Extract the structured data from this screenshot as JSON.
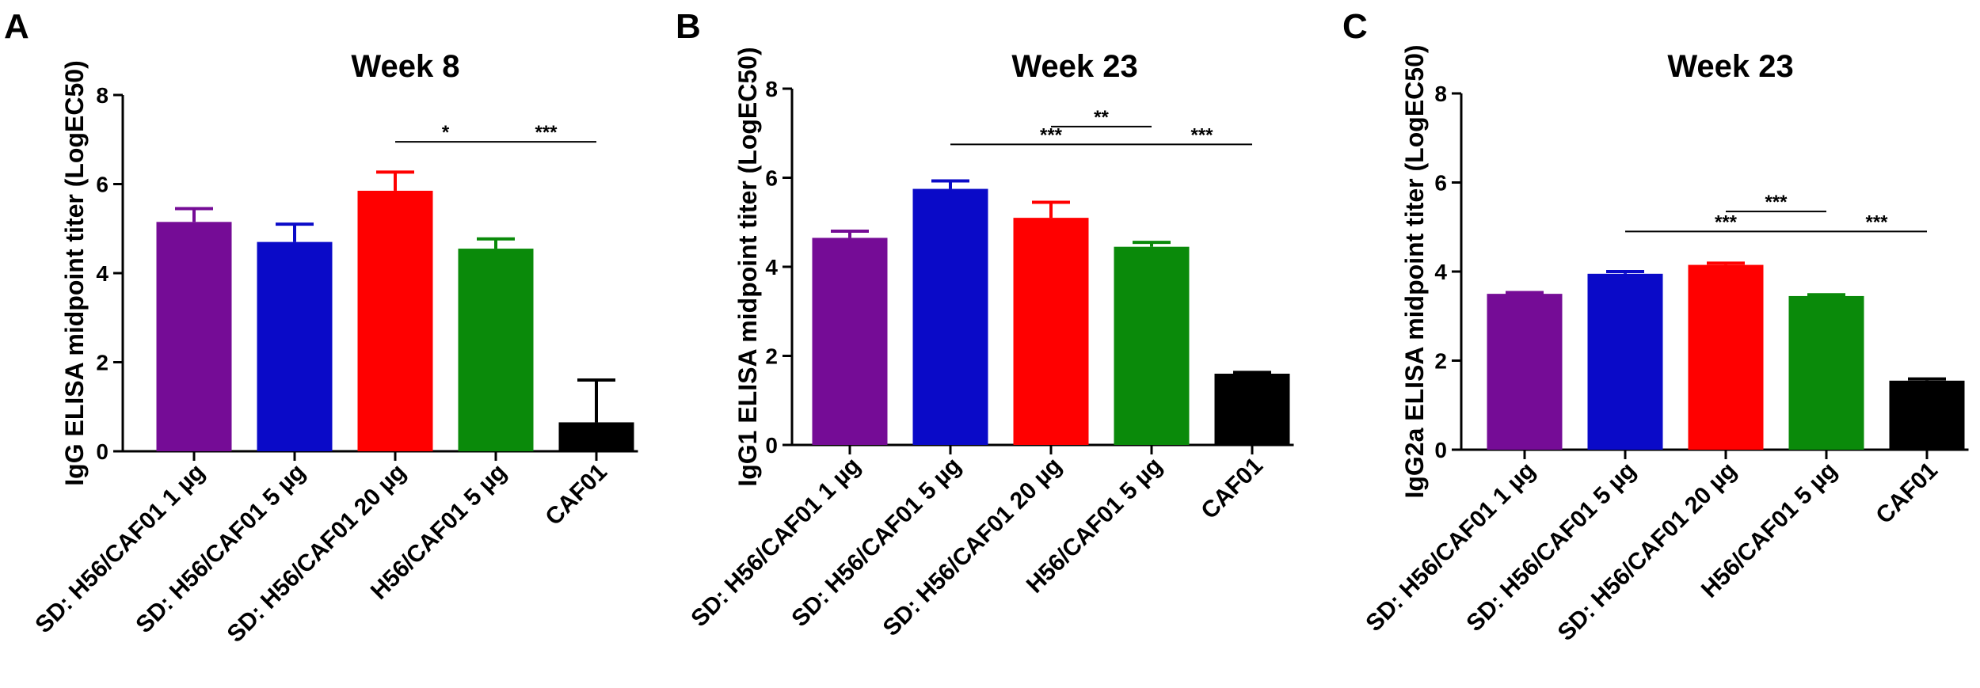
{
  "chart_data": [
    {
      "type": "bar",
      "panel": "A",
      "title": "Week 8",
      "ylabel": "IgG ELISA midpoint titer (LogEC50)",
      "ylim": [
        0,
        8
      ],
      "yticks": [
        0,
        2,
        4,
        6,
        8
      ],
      "categories": [
        "SD: H56/CAF01 1 µg",
        "SD: H56/CAF01 5 µg",
        "SD: H56/CAF01 20 µg",
        "H56/CAF01 5 µg",
        "CAF01"
      ],
      "values": [
        5.15,
        4.7,
        5.85,
        4.55,
        0.65
      ],
      "errors": [
        0.3,
        0.4,
        0.42,
        0.22,
        0.95
      ],
      "colors": [
        "#750c96",
        "#0a0ac8",
        "#ff0000",
        "#0a8a0a",
        "#000000"
      ],
      "significance": [
        {
          "from": 2,
          "to": 3,
          "label": "*",
          "y": 6.95
        },
        {
          "from": 3,
          "to": 4,
          "label": "***",
          "y": 6.95
        }
      ]
    },
    {
      "type": "bar",
      "panel": "B",
      "title": "Week 23",
      "ylabel": "IgG1 ELISA midpoint titer (LogEC50)",
      "ylim": [
        0,
        8
      ],
      "yticks": [
        0,
        2,
        4,
        6,
        8
      ],
      "categories": [
        "SD: H56/CAF01 1 µg",
        "SD: H56/CAF01 5 µg",
        "SD: H56/CAF01 20 µg",
        "H56/CAF01 5 µg",
        "CAF01"
      ],
      "values": [
        4.65,
        5.75,
        5.1,
        4.45,
        1.6
      ],
      "errors": [
        0.15,
        0.18,
        0.35,
        0.1,
        0.03
      ],
      "colors": [
        "#750c96",
        "#0a0ac8",
        "#ff0000",
        "#0a8a0a",
        "#000000"
      ],
      "significance": [
        {
          "from": 2,
          "to": 3,
          "label": "**",
          "y": 7.15
        },
        {
          "from": 1,
          "to": 3,
          "label": "***",
          "y": 6.75
        },
        {
          "from": 3,
          "to": 4,
          "label": "***",
          "y": 6.75
        }
      ]
    },
    {
      "type": "bar",
      "panel": "C",
      "title": "Week 23",
      "ylabel": "IgG2a ELISA midpoint titer (LogEC50)",
      "ylim": [
        0,
        8
      ],
      "yticks": [
        0,
        2,
        4,
        6,
        8
      ],
      "categories": [
        "SD: H56/CAF01 1 µg",
        "SD: H56/CAF01 5 µg",
        "SD: H56/CAF01 20 µg",
        "H56/CAF01 5 µg",
        "CAF01"
      ],
      "values": [
        3.5,
        3.95,
        4.15,
        3.45,
        1.55
      ],
      "errors": [
        0.03,
        0.05,
        0.04,
        0.03,
        0.04
      ],
      "colors": [
        "#750c96",
        "#0a0ac8",
        "#ff0000",
        "#0a8a0a",
        "#000000"
      ],
      "significance": [
        {
          "from": 2,
          "to": 3,
          "label": "***",
          "y": 5.35
        },
        {
          "from": 1,
          "to": 3,
          "label": "***",
          "y": 4.9
        },
        {
          "from": 3,
          "to": 4,
          "label": "***",
          "y": 4.9
        }
      ]
    }
  ]
}
